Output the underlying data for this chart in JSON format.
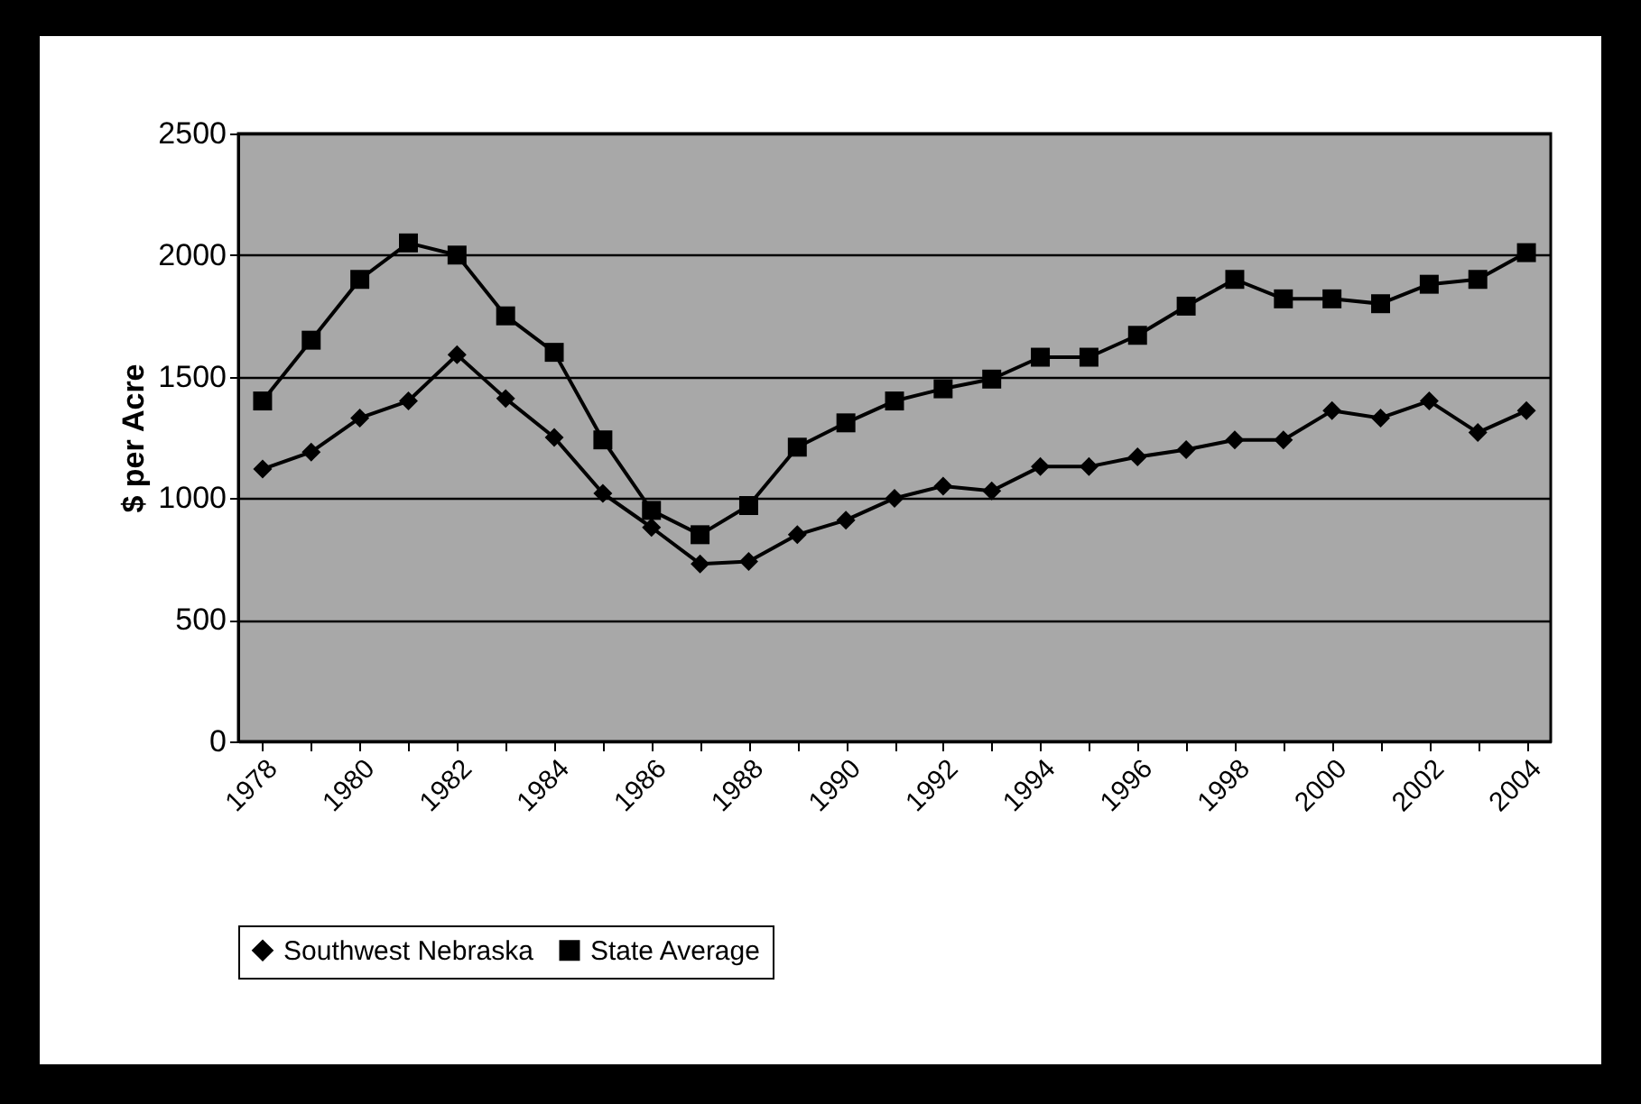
{
  "chart_data": {
    "type": "line",
    "ylabel": "$ per Acre",
    "categories": [
      "1978",
      null,
      "1980",
      null,
      "1982",
      null,
      "1984",
      null,
      "1986",
      null,
      "1988",
      null,
      "1990",
      null,
      "1992",
      null,
      "1994",
      null,
      "1996",
      null,
      "1998",
      null,
      "2000",
      null,
      "2002",
      null,
      "2004"
    ],
    "series": [
      {
        "name": "Southwest Nebraska",
        "color": "#000000",
        "marker": "diamond",
        "values": [
          1120,
          1190,
          1330,
          1400,
          1590,
          1410,
          1250,
          1020,
          880,
          730,
          740,
          850,
          910,
          1000,
          1050,
          1030,
          1130,
          1130,
          1170,
          1200,
          1240,
          1240,
          1360,
          1330,
          1400,
          1270,
          1360
        ]
      },
      {
        "name": "State Average",
        "color": "#000000",
        "marker": "square",
        "values": [
          1400,
          1650,
          1900,
          2050,
          2000,
          1750,
          1600,
          1240,
          950,
          850,
          970,
          1210,
          1310,
          1400,
          1450,
          1490,
          1580,
          1580,
          1670,
          1790,
          1900,
          1820,
          1820,
          1800,
          1880,
          1900,
          2010
        ]
      }
    ],
    "ylim": [
      0,
      2500
    ],
    "yticks": [
      0,
      500,
      {
        "value": 1000,
        "label": "1000"
      },
      {
        "value": 1500,
        "label": "1500"
      },
      {
        "value": 2000,
        "label": "2000"
      },
      {
        "value": 2500,
        "label": "2500"
      }
    ],
    "grid": "y",
    "legend": "bottom",
    "line_style": "solid"
  }
}
